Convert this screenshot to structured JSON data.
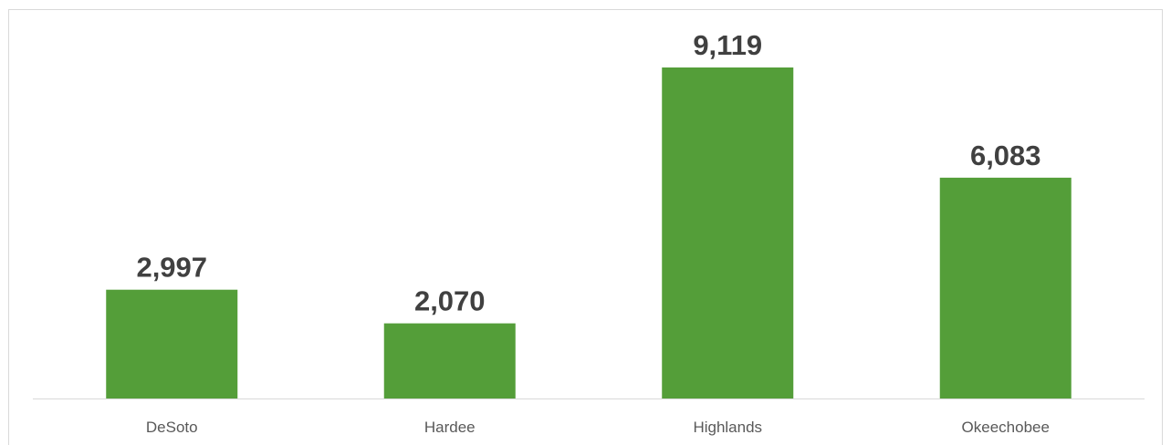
{
  "chart_data": {
    "type": "bar",
    "categories": [
      "DeSoto",
      "Hardee",
      "Highlands",
      "Okeechobee"
    ],
    "values": [
      2997,
      2070,
      9119,
      6083
    ],
    "value_labels": [
      "2,997",
      "2,070",
      "9,119",
      "6,083"
    ],
    "color": "#549e39"
  }
}
